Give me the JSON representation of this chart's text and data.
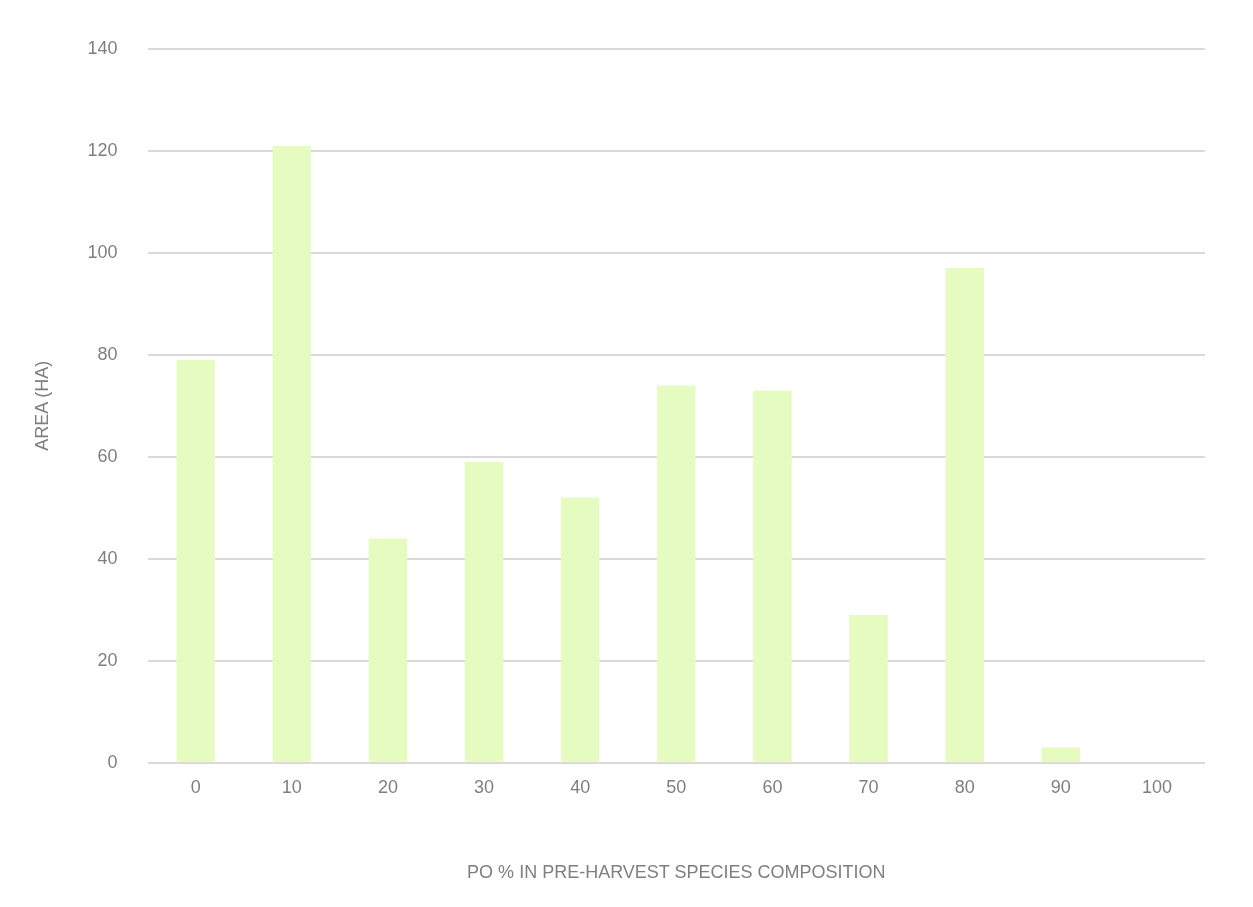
{
  "chart_data": {
    "type": "bar",
    "xlabel": "PO % IN PRE-HARVEST SPECIES COMPOSITION",
    "ylabel": "AREA (HA)",
    "categories": [
      "0",
      "10",
      "20",
      "30",
      "40",
      "50",
      "60",
      "70",
      "80",
      "90",
      "100"
    ],
    "series": [
      {
        "color": "#e6fbc0",
        "values": [
          79,
          121,
          44,
          59,
          52,
          74,
          73,
          29,
          97,
          3,
          0
        ]
      }
    ],
    "ylim": [
      0,
      140
    ],
    "yticks": [
      0,
      20,
      40,
      60,
      80,
      100,
      120,
      140
    ],
    "grid": "y",
    "legend": false
  }
}
